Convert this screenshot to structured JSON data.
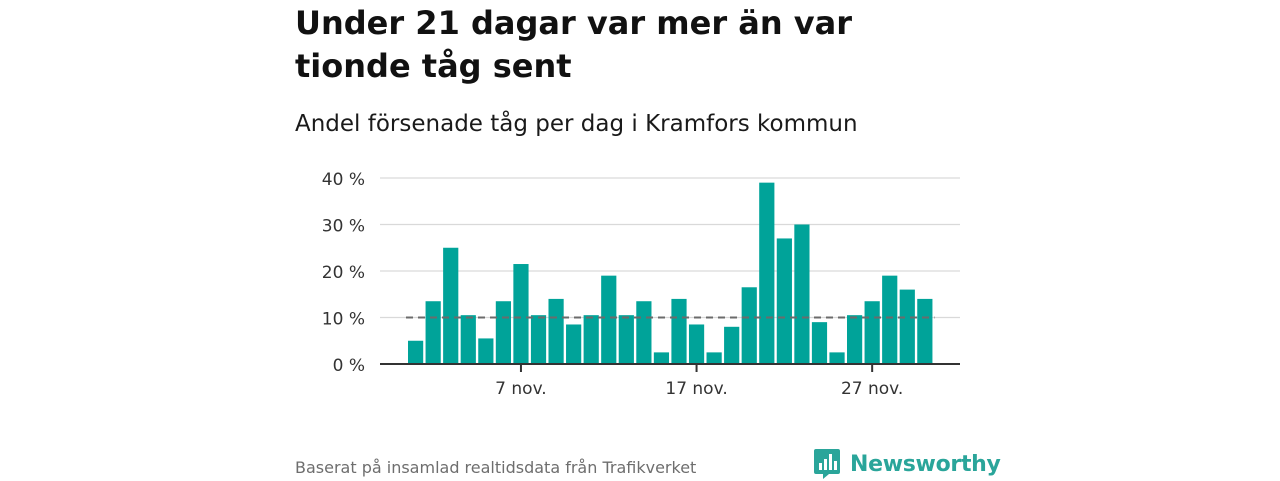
{
  "header": {
    "title": "Under 21 dagar var mer än var tionde tåg sent",
    "subtitle": "Andel försenade tåg per dag i Kramfors kommun"
  },
  "footer": {
    "source": "Baserat på insamlad realtidsdata från Trafikverket",
    "brand": "Newsworthy"
  },
  "colors": {
    "bar": "#00a399",
    "brand": "#2aa59a",
    "reference_line": "#6b6b6b"
  },
  "chart_data": {
    "type": "bar",
    "title": "Under 21 dagar var mer än var tionde tåg sent",
    "subtitle": "Andel försenade tåg per dag i Kramfors kommun",
    "x_start_day": 1,
    "x_tick_values": [
      7,
      17,
      27
    ],
    "x_tick_labels": [
      "7 nov.",
      "17 nov.",
      "27 nov."
    ],
    "values": [
      5,
      13.5,
      25,
      10.5,
      5.5,
      13.5,
      21.5,
      10.5,
      14,
      8.5,
      10.5,
      19,
      10.5,
      13.5,
      2.5,
      14,
      8.5,
      2.5,
      8,
      16.5,
      39,
      27,
      30,
      9,
      2.5,
      10.5,
      13.5,
      19,
      16,
      14
    ],
    "ylim": [
      0,
      40
    ],
    "yticks": [
      0,
      10,
      20,
      30,
      40
    ],
    "ytick_labels": [
      "0 %",
      "10 %",
      "20 %",
      "30 %",
      "40 %"
    ],
    "reference_line": 10,
    "grid": true
  }
}
